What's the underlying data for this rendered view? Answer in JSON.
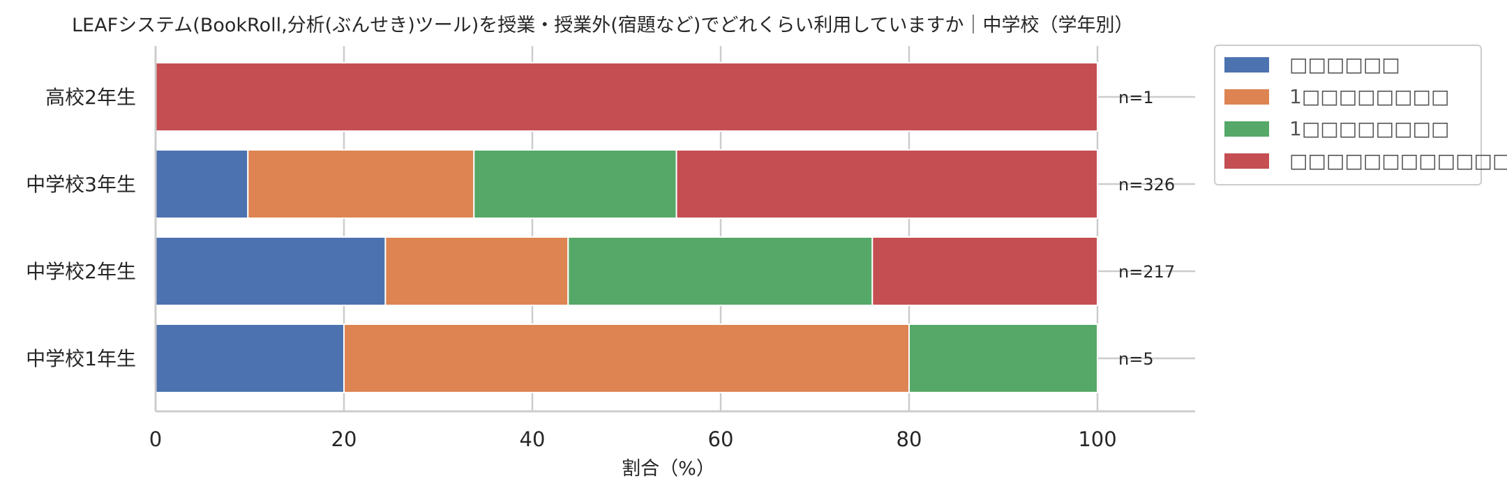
{
  "chart_data": {
    "type": "bar",
    "orientation": "horizontal",
    "stacked": true,
    "title": "LEAFシステム(BookRoll,分析(ぶんせき)ツール)を授業・授業外(宿題など)でどれくらい利用していますか｜中学校（学年別）",
    "xlabel": "割合（%）",
    "ylabel": "",
    "xlim": [
      0,
      110
    ],
    "xticks": [
      0,
      20,
      40,
      60,
      80,
      100
    ],
    "grid": true,
    "legend_position": "upper right, outside plot",
    "categories": [
      "高校2年生",
      "中学校3年生",
      "中学校2年生",
      "中学校1年生"
    ],
    "n_labels": [
      "n=1",
      "n=326",
      "n=217",
      "n=5"
    ],
    "series": [
      {
        "name": "□□□□□□",
        "color": "#4c72b0",
        "values": [
          0,
          9.8,
          24.4,
          20.0
        ]
      },
      {
        "name": "1□□□□□□□□",
        "color": "#dd8452",
        "values": [
          0,
          24.0,
          19.4,
          60.0
        ]
      },
      {
        "name": "1□□□□□□□□",
        "color": "#55a868",
        "values": [
          0,
          21.5,
          32.3,
          20.0
        ]
      },
      {
        "name": "□□□□□□□□□□□□□",
        "color": "#c44e52",
        "values": [
          100.0,
          44.7,
          23.9,
          0
        ]
      }
    ]
  }
}
